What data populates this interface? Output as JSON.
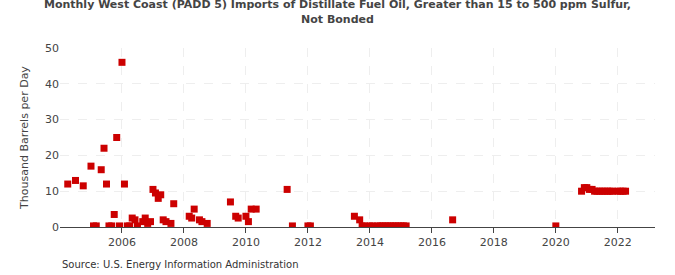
{
  "chart_data": {
    "type": "scatter",
    "title": "Monthly West Coast (PADD 5) Imports of Distillate Fuel Oil, Greater than 15 to 500 ppm Sulfur,\nNot Bonded",
    "ylabel": "Thousand Barrels per Day",
    "annotations": [
      "Source: U.S. Energy Information Administration"
    ],
    "color": "#cc0000",
    "marker": "square",
    "grid": true,
    "x": [
      2004.25,
      2004.5,
      2004.75,
      2005.0,
      2005.08,
      2005.17,
      2005.33,
      2005.42,
      2005.5,
      2005.58,
      2005.67,
      2005.75,
      2005.83,
      2005.92,
      2006.0,
      2006.08,
      2006.17,
      2006.25,
      2006.33,
      2006.42,
      2006.5,
      2006.67,
      2006.75,
      2006.83,
      2006.92,
      2007.0,
      2007.08,
      2007.17,
      2007.25,
      2007.33,
      2007.42,
      2007.58,
      2007.67,
      2008.17,
      2008.25,
      2008.33,
      2008.5,
      2008.58,
      2008.75,
      2009.5,
      2009.67,
      2009.75,
      2010.0,
      2010.08,
      2010.17,
      2010.33,
      2011.33,
      2011.5,
      2012.0,
      2012.08,
      2013.5,
      2013.67,
      2013.75,
      2013.83,
      2014.0,
      2014.08,
      2014.25,
      2014.33,
      2014.42,
      2014.5,
      2014.58,
      2014.67,
      2014.75,
      2014.83,
      2014.92,
      2015.0,
      2015.08,
      2015.17,
      2016.67,
      2020.0,
      2020.83,
      2020.92,
      2021.0,
      2021.08,
      2021.17,
      2021.25,
      2021.33,
      2021.42,
      2021.5,
      2021.58,
      2021.67,
      2021.75,
      2021.83,
      2022.0,
      2022.08,
      2022.17,
      2022.25
    ],
    "values": [
      12.0,
      13.0,
      11.5,
      17.0,
      0.3,
      0.3,
      16.0,
      22.0,
      12.0,
      0.3,
      0.3,
      3.5,
      25.0,
      0.3,
      46.0,
      12.0,
      0.3,
      0.3,
      2.5,
      2.0,
      0.3,
      1.5,
      2.5,
      1.0,
      1.5,
      10.5,
      9.5,
      8.0,
      9.0,
      2.0,
      1.5,
      1.0,
      6.5,
      3.0,
      2.5,
      5.0,
      2.0,
      1.5,
      1.0,
      7.0,
      3.0,
      2.5,
      3.0,
      1.5,
      5.0,
      5.0,
      10.5,
      0.3,
      0.3,
      0.3,
      3.0,
      2.0,
      0.3,
      0.3,
      0.3,
      0.3,
      0.3,
      0.3,
      0.3,
      0.3,
      0.3,
      0.3,
      0.3,
      0.3,
      0.3,
      0.3,
      0.3,
      0.3,
      2.0,
      0.3,
      10.0,
      11.0,
      11.0,
      10.5,
      10.5,
      10.0,
      10.0,
      10.0,
      10.0,
      10.0,
      10.0,
      10.0,
      10.0,
      10.0,
      10.0,
      10.0,
      10.0
    ],
    "xlim": [
      2004.0,
      2023.2
    ],
    "xticks": [
      2006,
      2008,
      2010,
      2012,
      2014,
      2016,
      2018,
      2020,
      2022
    ],
    "ylim": [
      0,
      50
    ],
    "yticks": [
      0,
      10,
      20,
      30,
      40,
      50
    ]
  }
}
